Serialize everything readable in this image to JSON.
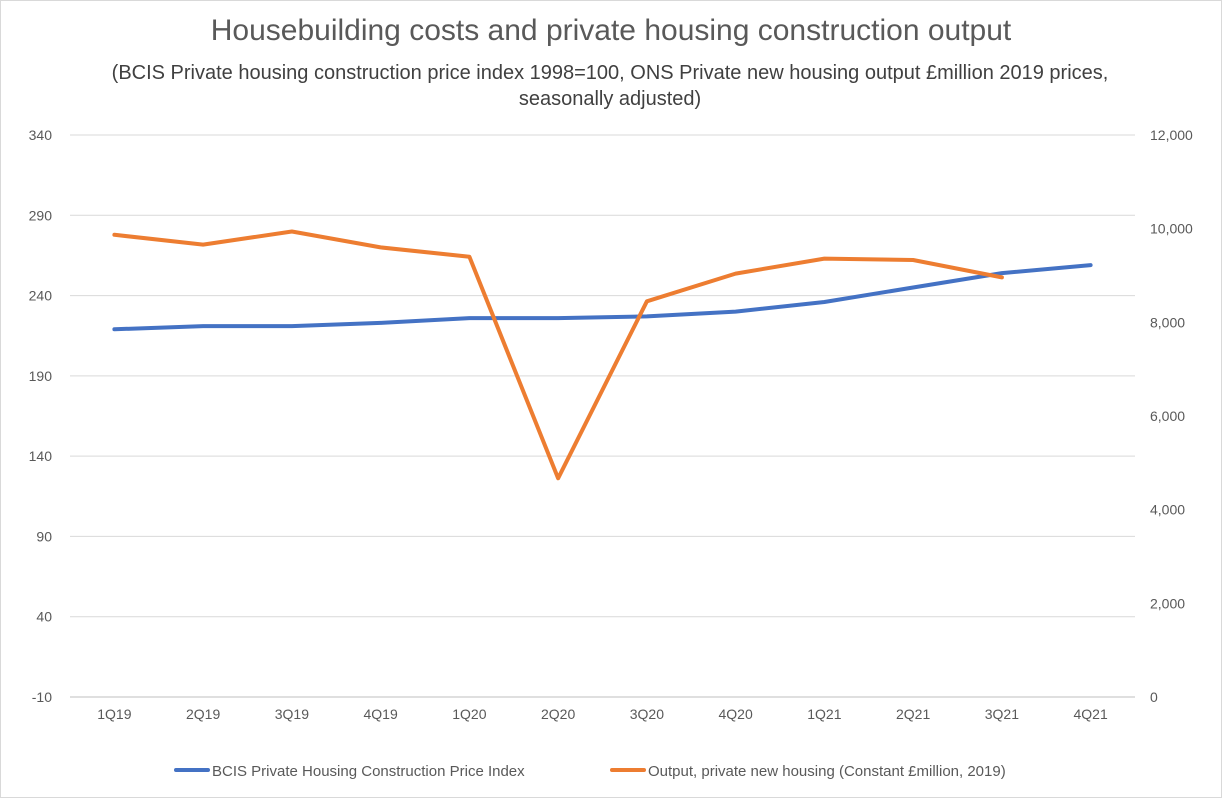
{
  "chart_data": {
    "type": "line",
    "title": "Housebuilding costs and private housing construction output",
    "subtitle": "(BCIS Private housing construction price index 1998=100, ONS Private new housing output £million 2019 prices, seasonally adjusted)",
    "categories": [
      "1Q19",
      "2Q19",
      "3Q19",
      "4Q19",
      "1Q20",
      "2Q20",
      "3Q20",
      "4Q20",
      "1Q21",
      "2Q21",
      "3Q21",
      "4Q21"
    ],
    "left_axis": {
      "ylim": [
        -10,
        340
      ],
      "ticks": [
        -10,
        40,
        90,
        140,
        190,
        240,
        290,
        340
      ]
    },
    "right_axis": {
      "ylim": [
        0,
        12000
      ],
      "ticks": [
        0,
        2000,
        4000,
        6000,
        8000,
        10000,
        12000
      ],
      "tick_labels": [
        "0",
        "2,000",
        "4,000",
        "6,000",
        "8,000",
        "10,000",
        "12,000"
      ]
    },
    "grid": true,
    "legend_position": "bottom",
    "series": [
      {
        "name": "BCIS Private Housing Construction Price Index",
        "axis": "left",
        "color": "#4472c4",
        "values": [
          219,
          221,
          221,
          223,
          226,
          226,
          227,
          230,
          236,
          245,
          254,
          259
        ]
      },
      {
        "name": "Output, private new housing (Constant £million, 2019)",
        "axis": "right",
        "color": "#ed7d31",
        "values": [
          9870,
          9660,
          9940,
          9600,
          9400,
          4670,
          8450,
          9040,
          9360,
          9330,
          8960,
          null
        ]
      }
    ]
  }
}
